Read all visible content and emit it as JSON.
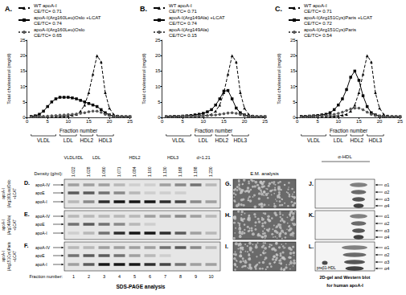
{
  "chart_data": [
    {
      "type": "line",
      "title": "A.",
      "xlabel": "Fraction number",
      "ylabel": "Total cholesterol (mg/dl)",
      "xlim": [
        0,
        25
      ],
      "xticks": [
        0,
        5,
        10,
        15,
        20,
        25
      ],
      "ylim": [
        0,
        25
      ],
      "yticks": [
        0,
        5,
        10,
        15,
        20,
        25
      ],
      "grid": false,
      "legend": "upper left",
      "x": [
        1,
        2,
        3,
        4,
        5,
        6,
        7,
        8,
        9,
        10,
        11,
        12,
        13,
        14,
        15,
        16,
        17,
        18,
        19,
        20,
        21,
        22,
        23,
        24,
        25
      ],
      "series": [
        {
          "name": "WT apoA-I",
          "annotation": "CE/TC= 0.71",
          "color": "#000000",
          "line_style": "dashed",
          "marker": "triangle",
          "values": [
            0.3,
            0.3,
            0.3,
            0.3,
            0.3,
            0.3,
            0.3,
            0.3,
            0.4,
            0.5,
            0.7,
            1,
            2,
            4,
            8,
            14,
            20,
            18,
            8,
            3,
            1,
            0.5,
            0.3,
            0.2,
            0.2
          ]
        },
        {
          "name": "apoA-I(Arg160Leu)Oslo +LCAT",
          "annotation": "CE/TC= 0.74",
          "color": "#000000",
          "line_style": "solid",
          "marker": "square",
          "values": [
            0.3,
            0.5,
            1,
            2,
            3.5,
            5,
            6,
            6.5,
            6.5,
            6.5,
            6.3,
            6,
            5.5,
            5,
            4.5,
            4,
            3.5,
            2.5,
            1.5,
            0.8,
            0.4,
            0.3,
            0.2,
            0.2,
            0.2
          ]
        },
        {
          "name": "apoA-I(Arg160Leu)Oslo",
          "annotation": "CE/TC= 0.65",
          "color": "#555555",
          "line_style": "dotted",
          "marker": "circle",
          "values": [
            0.2,
            0.2,
            0.3,
            0.3,
            0.4,
            0.5,
            0.6,
            0.7,
            0.8,
            0.9,
            1,
            1.1,
            1.3,
            1.5,
            1.8,
            2,
            2,
            1.6,
            1,
            0.6,
            0.4,
            0.3,
            0.2,
            0.2,
            0.2
          ]
        }
      ],
      "regions": [
        {
          "label": "VLDL",
          "from": 1,
          "to": 7
        },
        {
          "label": "LDL",
          "from": 8,
          "to": 12
        },
        {
          "label": "HDL2",
          "from": 13,
          "to": 16
        },
        {
          "label": "HDL3",
          "from": 17,
          "to": 21
        }
      ]
    },
    {
      "type": "line",
      "title": "B.",
      "xlabel": "Fraction number",
      "ylabel": "Total cholesterol (mg/dl)",
      "xlim": [
        0,
        25
      ],
      "xticks": [
        0,
        5,
        10,
        15,
        20,
        25
      ],
      "ylim": [
        0,
        25
      ],
      "yticks": [
        0,
        5,
        10,
        15,
        20,
        25
      ],
      "grid": false,
      "legend": "upper left",
      "x": [
        1,
        2,
        3,
        4,
        5,
        6,
        7,
        8,
        9,
        10,
        11,
        12,
        13,
        14,
        15,
        16,
        17,
        18,
        19,
        20,
        21,
        22,
        23,
        24,
        25
      ],
      "series": [
        {
          "name": "WT apoA-I",
          "annotation": "CE/TC= 0.71",
          "color": "#000000",
          "line_style": "dashed",
          "marker": "triangle",
          "values": [
            0.3,
            0.3,
            0.3,
            0.3,
            0.3,
            0.3,
            0.3,
            0.3,
            0.4,
            0.5,
            0.7,
            1,
            2,
            4,
            8,
            14,
            20,
            18,
            8,
            3,
            1,
            0.5,
            0.3,
            0.2,
            0.2
          ]
        },
        {
          "name": "apoA-I(Arg149Ala) +LCAT",
          "annotation": "CE/TC= 0.74",
          "color": "#000000",
          "line_style": "solid",
          "marker": "square",
          "values": [
            0.2,
            0.2,
            0.3,
            0.3,
            0.4,
            0.5,
            0.6,
            0.8,
            1,
            1.3,
            1.8,
            2.5,
            4,
            6,
            8.5,
            8.7,
            6,
            3,
            1.5,
            0.8,
            0.4,
            0.3,
            0.2,
            0.2,
            0.2
          ]
        },
        {
          "name": "apoA-I(Arg149Ala)",
          "annotation": "CE/TC= 0.15",
          "color": "#555555",
          "line_style": "dotted",
          "marker": "circle",
          "values": [
            0.2,
            0.2,
            0.2,
            0.3,
            0.3,
            0.3,
            0.4,
            0.4,
            0.5,
            0.5,
            0.6,
            0.7,
            0.8,
            1,
            1.2,
            1.4,
            1.5,
            1.3,
            0.9,
            0.6,
            0.4,
            0.3,
            0.2,
            0.2,
            0.2
          ]
        }
      ],
      "regions": [
        {
          "label": "VLDL",
          "from": 1,
          "to": 7
        },
        {
          "label": "LDL",
          "from": 8,
          "to": 12
        },
        {
          "label": "HDL2",
          "from": 13,
          "to": 16
        },
        {
          "label": "HDL3",
          "from": 17,
          "to": 21
        }
      ]
    },
    {
      "type": "line",
      "title": "C.",
      "xlabel": "Fraction number",
      "ylabel": "Total cholesterol (mg/dl)",
      "xlim": [
        0,
        25
      ],
      "xticks": [
        0,
        5,
        10,
        15,
        20,
        25
      ],
      "ylim": [
        0,
        25
      ],
      "yticks": [
        0,
        5,
        10,
        15,
        20,
        25
      ],
      "grid": false,
      "legend": "upper left",
      "x": [
        1,
        2,
        3,
        4,
        5,
        6,
        7,
        8,
        9,
        10,
        11,
        12,
        13,
        14,
        15,
        16,
        17,
        18,
        19,
        20,
        21,
        22,
        23,
        24,
        25
      ],
      "series": [
        {
          "name": "WT apoA-I",
          "annotation": "CE/TC= 0.71",
          "color": "#000000",
          "line_style": "dashed",
          "marker": "triangle",
          "values": [
            0.3,
            0.3,
            0.3,
            0.3,
            0.3,
            0.3,
            0.3,
            0.3,
            0.4,
            0.5,
            0.7,
            1,
            2,
            4,
            8,
            14,
            20,
            18,
            8,
            3,
            1,
            0.5,
            0.3,
            0.2,
            0.2
          ]
        },
        {
          "name": "apoA-I(Arg151Cys)Paris +LCAT",
          "annotation": "CE/TC= 0.72",
          "color": "#000000",
          "line_style": "solid",
          "marker": "square",
          "values": [
            0.3,
            0.3,
            0.4,
            0.5,
            0.6,
            0.8,
            1,
            1.5,
            2.5,
            4,
            6,
            9,
            13,
            15,
            12,
            7,
            3.5,
            1.5,
            0.8,
            0.4,
            0.3,
            0.2,
            0.2,
            0.2,
            0.2
          ]
        },
        {
          "name": "apoA-I(Arg151Cys)Paris",
          "annotation": "CE/TC= 0.54",
          "color": "#555555",
          "line_style": "dotted",
          "marker": "circle",
          "values": [
            0.2,
            0.2,
            0.3,
            0.3,
            0.4,
            0.5,
            0.6,
            0.8,
            1,
            1.3,
            1.7,
            2.2,
            2.7,
            3,
            3,
            2.5,
            1.7,
            1,
            0.6,
            0.4,
            0.3,
            0.2,
            0.2,
            0.2,
            0.2
          ]
        }
      ],
      "regions": [
        {
          "label": "VLDL",
          "from": 1,
          "to": 7
        },
        {
          "label": "LDL",
          "from": 8,
          "to": 12
        },
        {
          "label": "HDL2",
          "from": 13,
          "to": 16
        },
        {
          "label": "HDL3",
          "from": 17,
          "to": 21
        }
      ]
    }
  ],
  "gels": {
    "columns": [
      {
        "label": "VLDL/IDL",
        "from": 1,
        "to": 1
      },
      {
        "label": "LDL",
        "from": 2,
        "to": 3
      },
      {
        "label": "HDL2",
        "from": 4,
        "to": 6
      },
      {
        "label": "HDL3",
        "from": 7,
        "to": 8
      },
      {
        "label": "d>1.21",
        "from": 9,
        "to": 10
      }
    ],
    "density_label": "Density (g/ml):",
    "densities": [
      "1.022",
      "1.028",
      "1.060",
      "1.071",
      "1.084",
      "1.100",
      "1.130",
      "1.168",
      "1.198",
      "1.230"
    ],
    "fraction_label": "Fraction number:",
    "fractions": [
      1,
      2,
      3,
      4,
      5,
      6,
      7,
      8,
      9,
      10
    ],
    "caption": "SDS-PAGE analysis",
    "panels": [
      {
        "letter": "D.",
        "side_label": [
          "apoA-I",
          "(Arg160Leu)Oslo",
          "+LCAT"
        ],
        "bands": [
          {
            "label": "apoA-IV",
            "intensity": [
              0.3,
              0.3,
              0.3,
              0.2,
              0.1,
              0.1,
              0.3,
              0.4,
              0.5,
              0.2
            ]
          },
          {
            "label": "apoE",
            "intensity": [
              0.6,
              0.6,
              0.5,
              0.4,
              0.2,
              0.1,
              0.1,
              0.1,
              0,
              0
            ]
          },
          {
            "label": "apoA-I",
            "intensity": [
              0.2,
              0.4,
              0.8,
              0.9,
              0.9,
              0.9,
              0.8,
              0.7,
              0.4,
              0.3
            ]
          }
        ]
      },
      {
        "letter": "E.",
        "side_label": [
          "apoA-I",
          "(Arg149Ala)",
          "+LCAT"
        ],
        "bands": [
          {
            "label": "apoA-IV",
            "intensity": [
              0.2,
              0.2,
              0.2,
              0.2,
              0.2,
              0.3,
              0.3,
              0.4,
              0.3,
              0.2
            ]
          },
          {
            "label": "apoE",
            "intensity": [
              0.5,
              0.6,
              0.5,
              0.4,
              0.2,
              0.1,
              0,
              0,
              0,
              0
            ]
          },
          {
            "label": "apoA-I",
            "intensity": [
              0.1,
              0.2,
              0.5,
              0.8,
              0.9,
              0.9,
              0.8,
              0.6,
              0.3,
              0.2
            ]
          }
        ]
      },
      {
        "letter": "F.",
        "side_label": [
          "apoA-I",
          "(Arg151Cys)Paris",
          "+LCAT"
        ],
        "bands": [
          {
            "label": "apoA-IV",
            "intensity": [
              0.2,
              0.2,
              0.3,
              0.3,
              0.3,
              0.3,
              0.5,
              0.6,
              0.4,
              0.2
            ]
          },
          {
            "label": "apoE",
            "intensity": [
              0.5,
              0.6,
              0.6,
              0.5,
              0.3,
              0.2,
              0.1,
              0,
              0,
              0
            ]
          },
          {
            "label": "apoA-I",
            "intensity": [
              0.3,
              0.6,
              0.9,
              0.9,
              0.9,
              0.8,
              0.7,
              0.5,
              0.3,
              0.3
            ]
          }
        ]
      }
    ]
  },
  "em": {
    "caption": "E.M. analysis",
    "panels": [
      "G.",
      "H.",
      "I."
    ]
  },
  "western": {
    "header": "α-HDL",
    "subclasses": [
      "α1",
      "α2",
      "α3",
      "α4"
    ],
    "panels": [
      {
        "letter": "J."
      },
      {
        "letter": "K."
      },
      {
        "letter": "L.",
        "extra": "preβ1-HDL"
      }
    ],
    "caption": [
      "2D-gel and Western blot",
      "for human apoA-I"
    ]
  }
}
